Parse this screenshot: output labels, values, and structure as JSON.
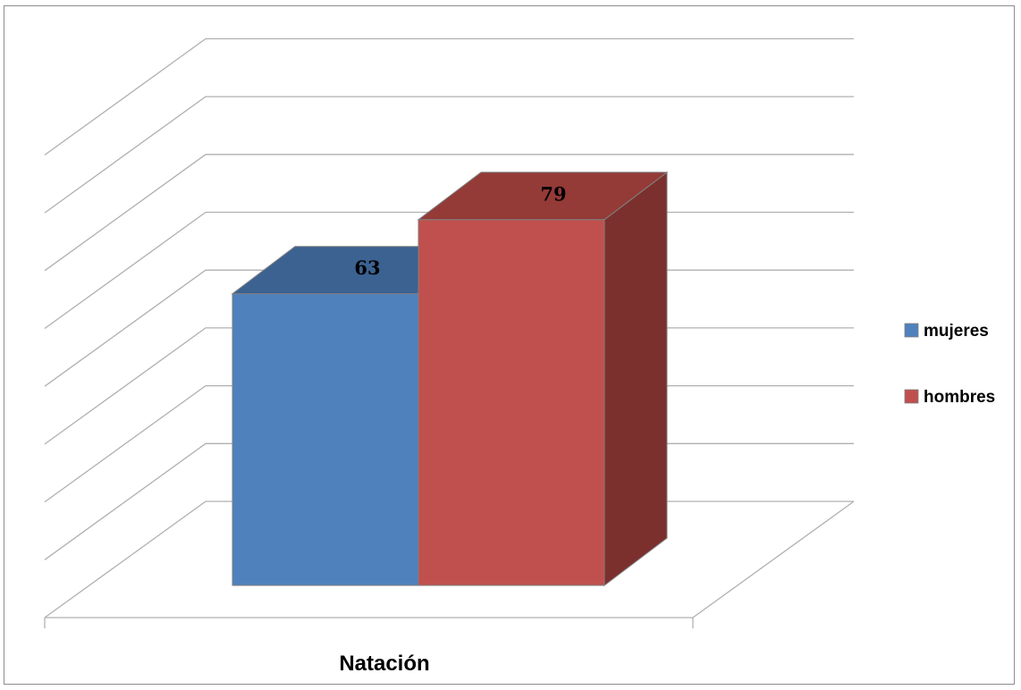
{
  "chart_data": {
    "type": "bar",
    "style": "3d-clustered-column",
    "categories": [
      "Natación"
    ],
    "series": [
      {
        "name": "mujeres",
        "values": [
          63
        ],
        "color": "#4f81bd",
        "top_color": "#3b6291",
        "side_color": "#385d8a"
      },
      {
        "name": "hombres",
        "values": [
          79
        ],
        "color": "#c0504d",
        "top_color": "#943a37",
        "side_color": "#7c302e"
      }
    ],
    "ylim": [
      0,
      100
    ],
    "gridlines": true,
    "legend_position": "right",
    "data_labels": [
      "63",
      "79"
    ]
  }
}
